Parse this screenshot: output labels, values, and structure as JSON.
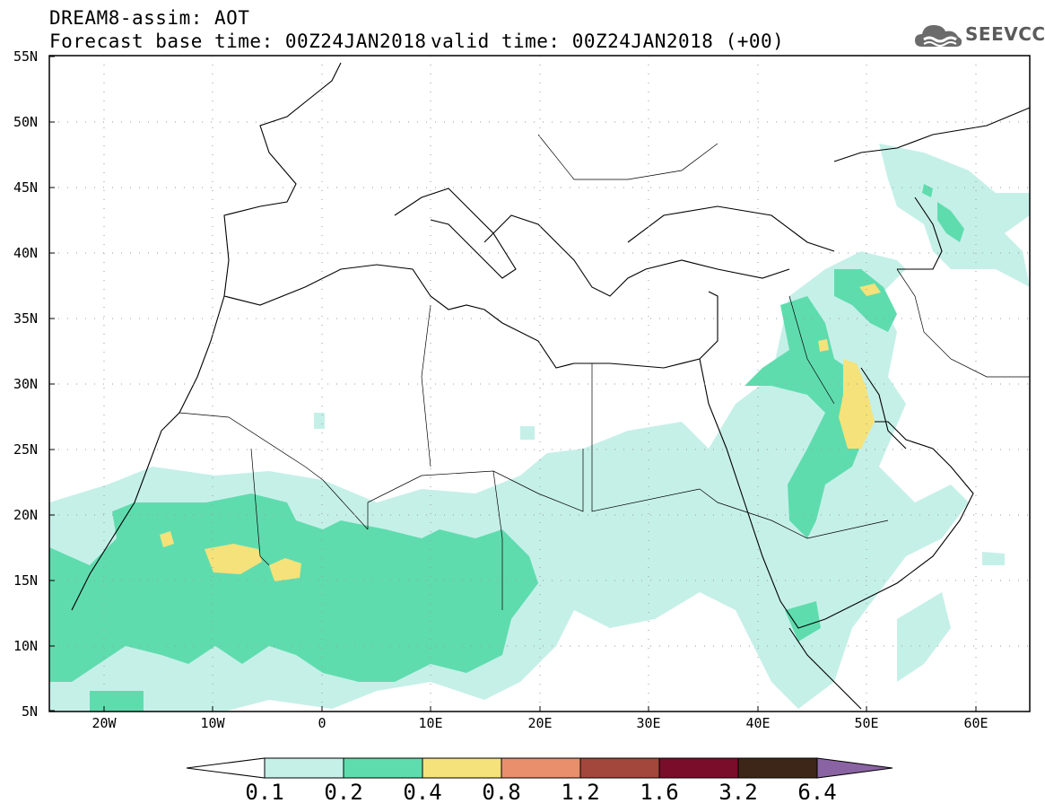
{
  "header": {
    "title": "DREAM8-assim: AOT",
    "base_time": "Forecast base time: 00Z24JAN2018",
    "valid_time": "valid time: 00Z24JAN2018 (+00)"
  },
  "logo": {
    "text": "SEEVCCC",
    "icon": "cloud-logo-icon"
  },
  "map": {
    "lat_labels": [
      "55N",
      "50N",
      "45N",
      "40N",
      "35N",
      "30N",
      "25N",
      "20N",
      "15N",
      "10N",
      "5N"
    ],
    "lon_labels": [
      "20W",
      "10W",
      "0",
      "10E",
      "20E",
      "30E",
      "40E",
      "50E",
      "60E"
    ],
    "lat_range": [
      5,
      55
    ],
    "lon_range": [
      -25,
      65
    ],
    "grid": "dotted",
    "variable": "Aerosol optical thickness"
  },
  "colorbar": {
    "labels": [
      "0.1",
      "0.2",
      "0.4",
      "0.8",
      "1.2",
      "1.6",
      "3.2",
      "6.4"
    ],
    "colors": [
      "#c5f0e8",
      "#5fdcae",
      "#f5e27a",
      "#e98f6c",
      "#a3473d",
      "#7a0d2a",
      "#3d2617"
    ],
    "under_color": "#ffffff",
    "over_color": "#8a63a3"
  },
  "colors": {
    "aot_0_1": "#c5f0e8",
    "aot_0_2": "#5fdcae",
    "aot_0_4": "#f5e27a"
  }
}
